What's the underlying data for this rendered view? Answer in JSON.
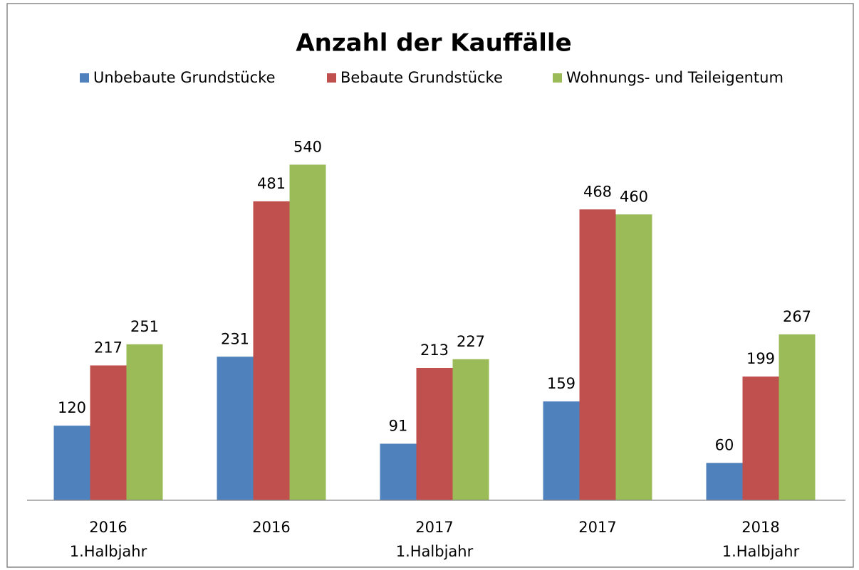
{
  "chart_data": {
    "type": "bar",
    "title": "Anzahl der Kauffälle",
    "categories": [
      [
        "2016",
        "1.Halbjahr"
      ],
      [
        "2016"
      ],
      [
        "2017",
        "1.Halbjahr"
      ],
      [
        "2017"
      ],
      [
        "2018",
        "1.Halbjahr"
      ]
    ],
    "series": [
      {
        "name": "Unbebaute Grundstücke",
        "color": "#4f81bd",
        "values": [
          120,
          231,
          91,
          159,
          60
        ]
      },
      {
        "name": "Bebaute Grundstücke",
        "color": "#c0504d",
        "values": [
          217,
          481,
          213,
          468,
          199
        ]
      },
      {
        "name": "Wohnungs- und Teileigentum",
        "color": "#9bbb59",
        "values": [
          251,
          540,
          227,
          460,
          267
        ]
      }
    ],
    "ylim": [
      0,
      600
    ],
    "legend": "top"
  }
}
